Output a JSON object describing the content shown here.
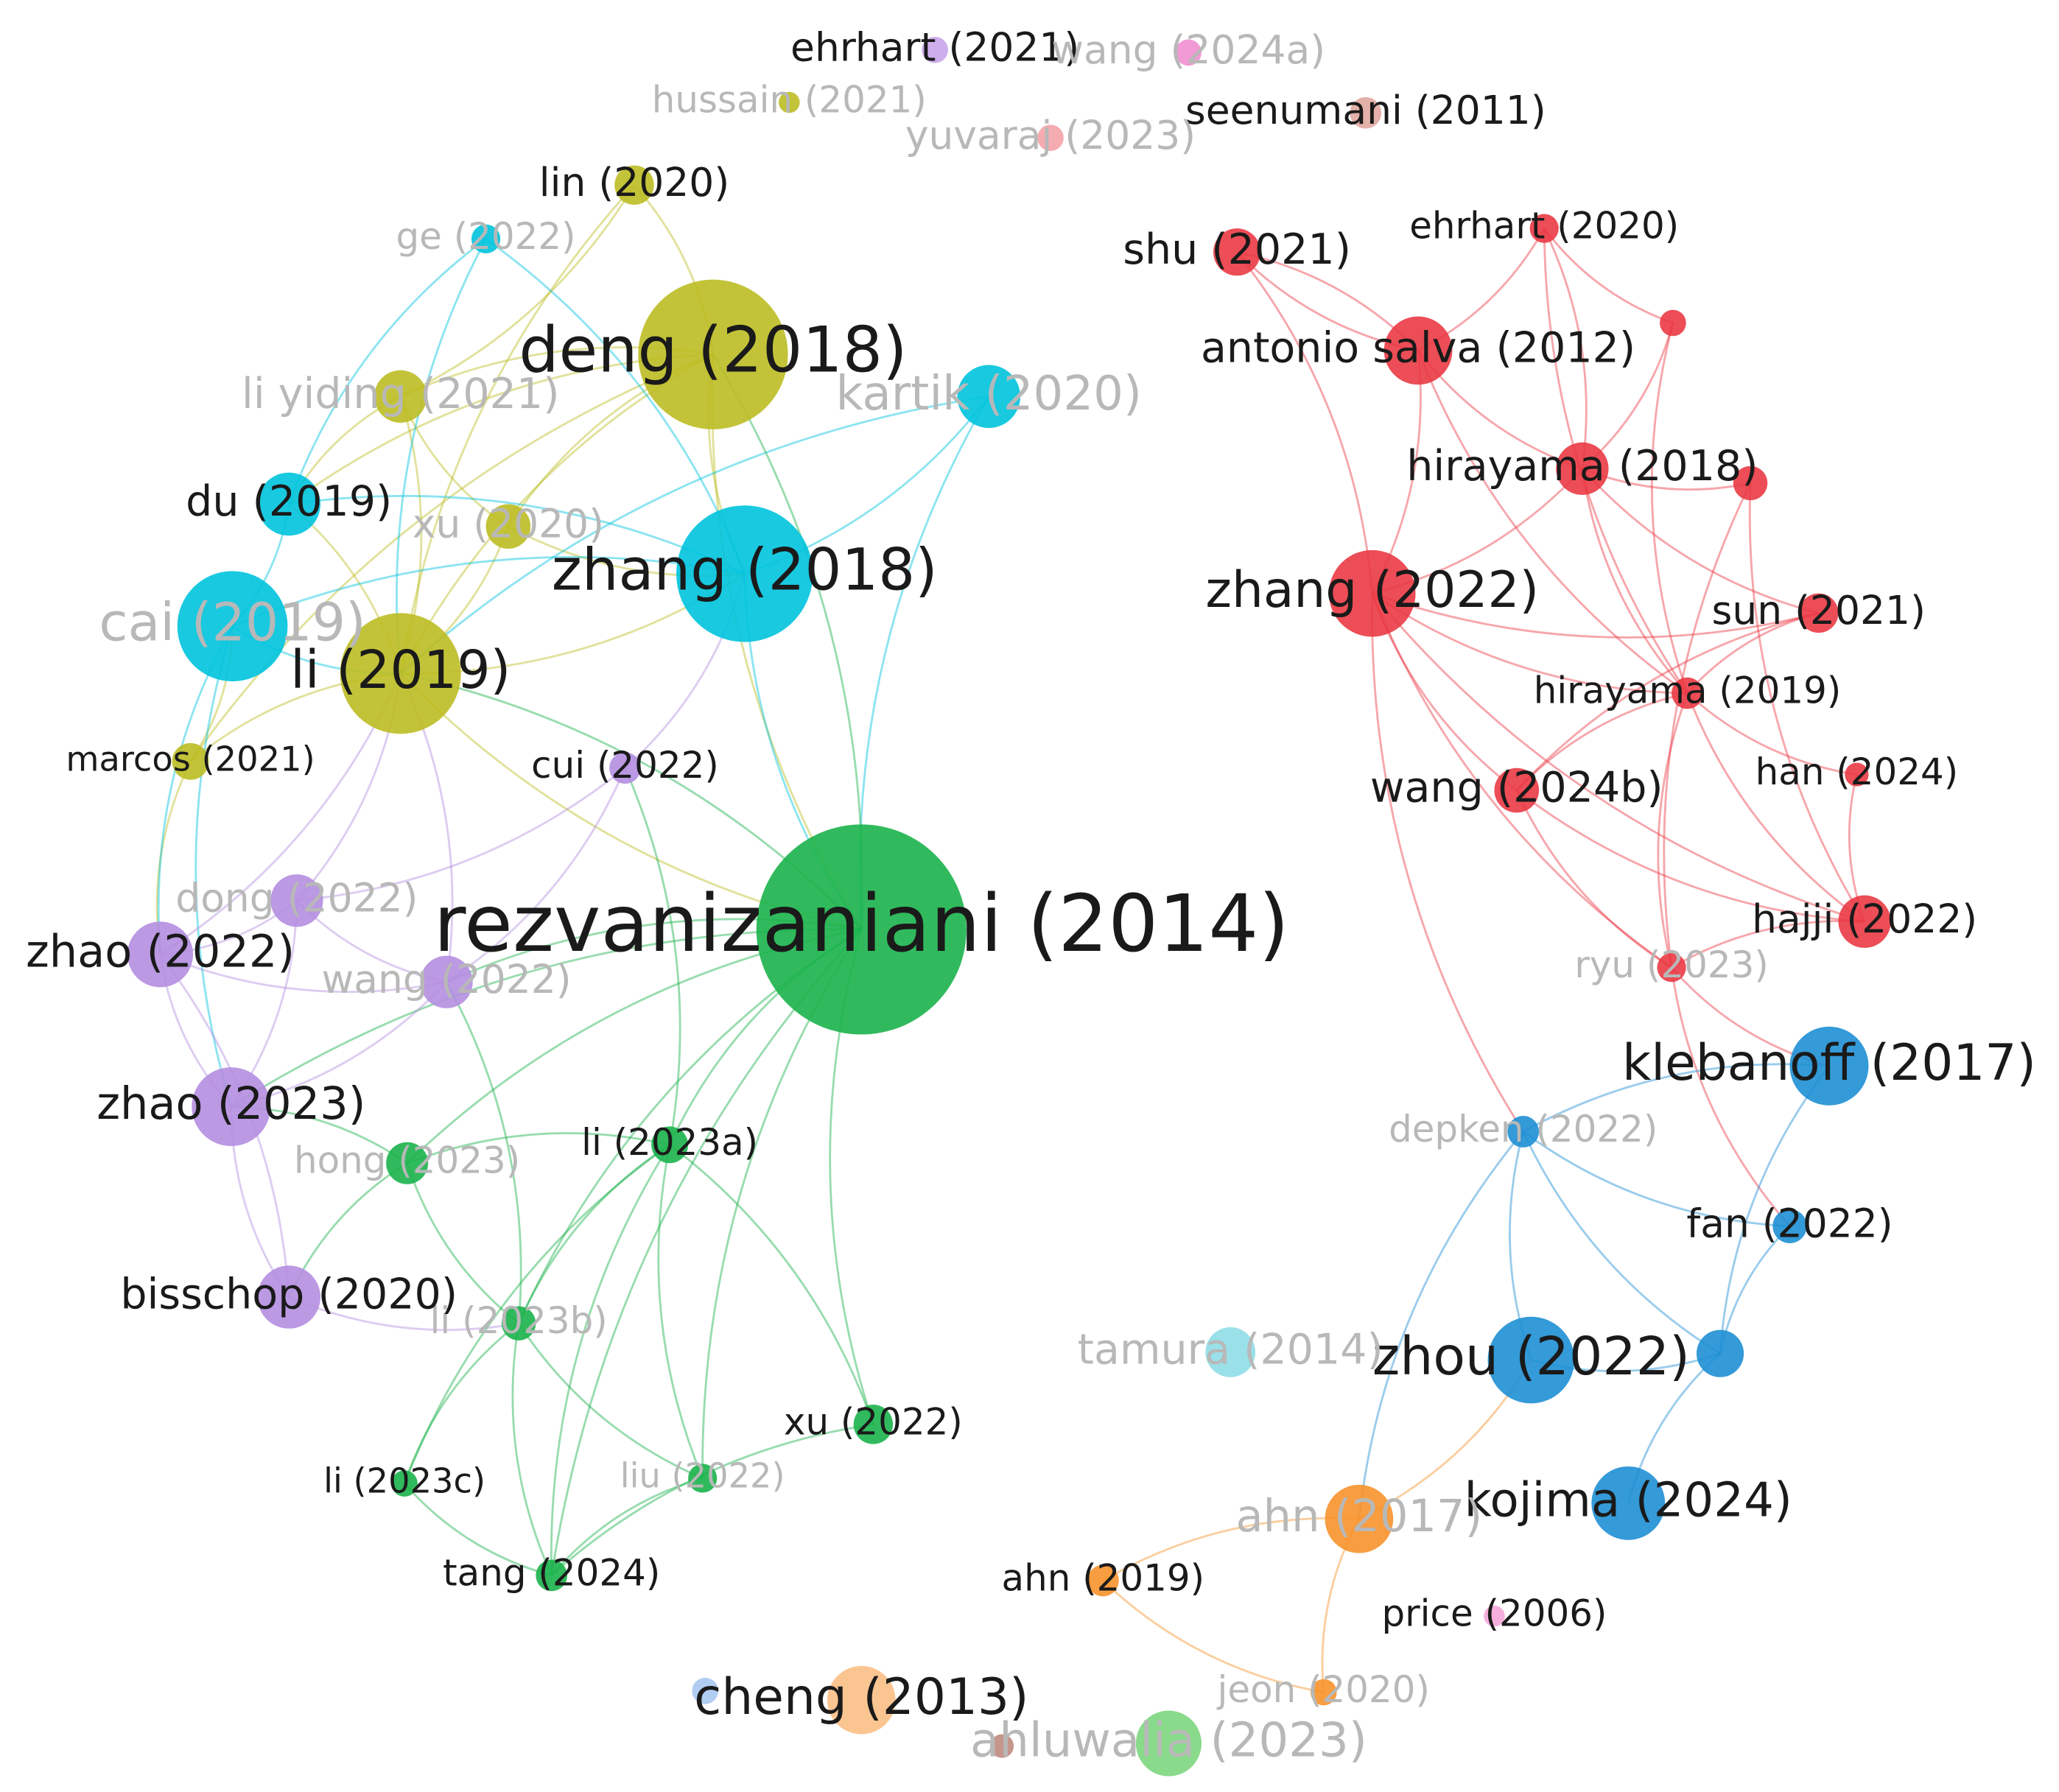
{
  "nodes": [
    {
      "label": "deng (2018)"
    },
    {
      "label": "li (2019)"
    },
    {
      "label": "li yiding (2021)"
    },
    {
      "label": "xu (2020)"
    },
    {
      "label": "lin (2020)"
    },
    {
      "label": "marcos (2021)"
    },
    {
      "label": "hussain (2021)"
    },
    {
      "label": "zhang (2018)"
    },
    {
      "label": "cai (2019)"
    },
    {
      "label": "kartik (2020)"
    },
    {
      "label": "du (2019)"
    },
    {
      "label": "ge (2022)"
    },
    {
      "label": "rezvanizaniani (2014)"
    },
    {
      "label": "li (2023a)"
    },
    {
      "label": "hong (2023)"
    },
    {
      "label": "li (2023b)"
    },
    {
      "label": "xu (2022)"
    },
    {
      "label": "liu (2022)"
    },
    {
      "label": "li (2023c)"
    },
    {
      "label": "tang (2024)"
    },
    {
      "label": "ahluwalia (2023)"
    },
    {
      "label": "zhao (2022)"
    },
    {
      "label": "zhao (2023)"
    },
    {
      "label": "dong (2022)"
    },
    {
      "label": "wang (2022)"
    },
    {
      "label": "cui (2022)"
    },
    {
      "label": "bisschop (2020)"
    },
    {
      "label": "ehrhart (2021)"
    },
    {
      "label": "wang (2024a)"
    },
    {
      "label": "price (2006)"
    },
    {
      "label": "zhang (2022)"
    },
    {
      "label": "antonio salva (2012)"
    },
    {
      "label": "hirayama (2018)"
    },
    {
      "label": "shu (2021)"
    },
    {
      "label": "ehrhart (2020)"
    },
    {
      "label": "sun (2021)"
    },
    {
      "label": "hirayama (2019)"
    },
    {
      "label": "wang (2024b)"
    },
    {
      "label": "han (2024)"
    },
    {
      "label": "hajji (2022)"
    },
    {
      "label": "ryu (2023)"
    },
    {
      "label": "klebanoff (2017)"
    },
    {
      "label": "depken (2022)"
    },
    {
      "label": "fan (2022)"
    },
    {
      "label": "zhou (2022)"
    },
    {
      "label": "kojima (2024)"
    },
    {
      "label": "tamura (2014)"
    },
    {
      "label": "ahn (2017)"
    },
    {
      "label": "ahn (2019)"
    },
    {
      "label": "jeon (2020)"
    },
    {
      "label": "cheng (2013)"
    },
    {
      "label": "seenumani (2011)"
    },
    {
      "label": "yuvaraj (2023)"
    }
  ]
}
